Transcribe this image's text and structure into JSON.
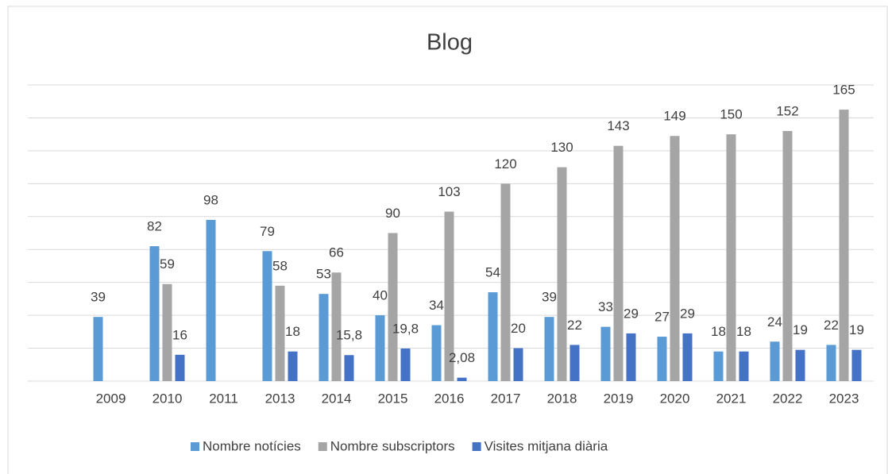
{
  "chart_data": {
    "type": "bar",
    "title": "Blog",
    "categories": [
      "2009",
      "2010",
      "2011",
      "2013",
      "2014",
      "2015",
      "2016",
      "2017",
      "2018",
      "2019",
      "2020",
      "2021",
      "2022",
      "2023"
    ],
    "series": [
      {
        "name": "Nombre notícies",
        "color": "#5b9bd5",
        "values": [
          39,
          82,
          98,
          79,
          53,
          40,
          34,
          54,
          39,
          33,
          27,
          18,
          24,
          22
        ]
      },
      {
        "name": "Nombre subscriptors",
        "color": "#a5a5a5",
        "values": [
          null,
          59,
          null,
          58,
          66,
          90,
          103,
          120,
          130,
          143,
          149,
          150,
          152,
          165
        ]
      },
      {
        "name": "Visites mitjana diària",
        "color": "#4472c4",
        "values": [
          null,
          16,
          null,
          18,
          15.8,
          19.8,
          2.08,
          20,
          22,
          29,
          29,
          18,
          19,
          19
        ],
        "value_labels": [
          null,
          "16",
          null,
          "18",
          "15,8",
          "19,8",
          "2,08",
          "20",
          "22",
          "29",
          "29",
          "18",
          "19",
          "19"
        ]
      }
    ],
    "ylim": [
      0,
      180
    ],
    "yticks": [
      0,
      20,
      40,
      60,
      80,
      100,
      120,
      140,
      160,
      180
    ],
    "grid": true,
    "legend": "bottom"
  }
}
